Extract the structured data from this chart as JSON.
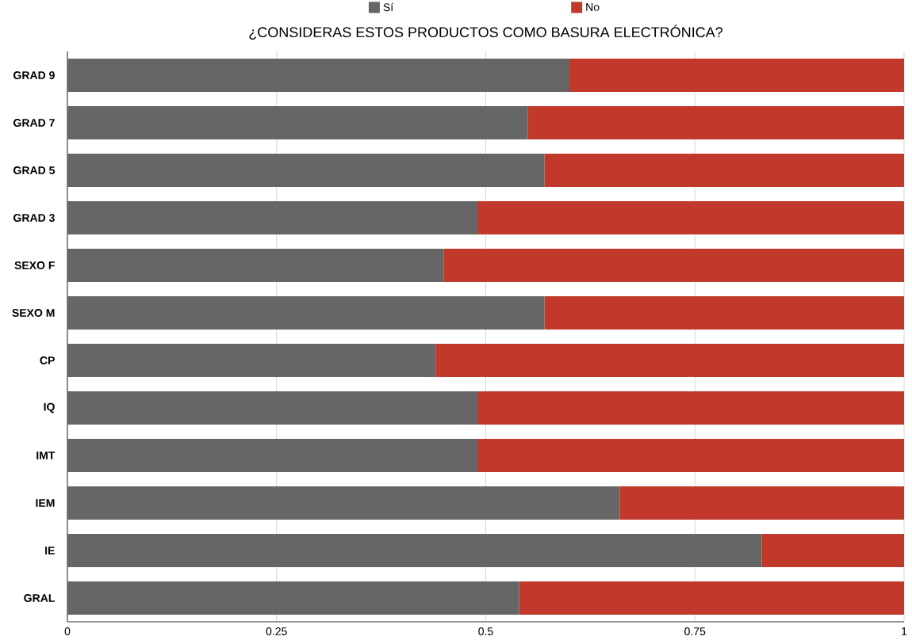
{
  "chart_data": {
    "type": "bar",
    "title": "¿CONSIDERAS ESTOS PRODUCTOS COMO BASURA ELECTRÓNICA?",
    "orientation": "horizontal",
    "stacked": true,
    "categories": [
      "GRAD 9",
      "GRAD 7",
      "GRAD 5",
      "GRAD 3",
      "SEXO  F",
      "SEXO  M",
      "CP",
      "IQ",
      "IMT",
      "IEM",
      "IE",
      "GRAL"
    ],
    "series": [
      {
        "name": "Sí",
        "color": "#666666",
        "values": [
          0.6,
          0.55,
          0.57,
          0.49,
          0.45,
          0.57,
          0.44,
          0.49,
          0.49,
          0.66,
          0.83,
          0.54
        ]
      },
      {
        "name": "No",
        "color": "#c0392b",
        "values": [
          0.4,
          0.45,
          0.43,
          0.51,
          0.55,
          0.43,
          0.56,
          0.51,
          0.51,
          0.34,
          0.17,
          0.46
        ]
      }
    ],
    "xlim": [
      0,
      1
    ],
    "xticks": [
      0,
      0.25,
      0.5,
      0.75,
      1
    ],
    "grid": "x",
    "legend": "top"
  }
}
